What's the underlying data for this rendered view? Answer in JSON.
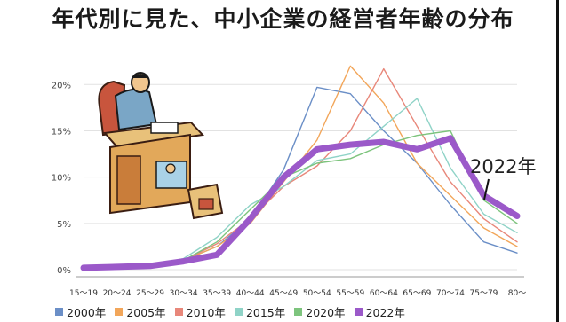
{
  "chart_data": {
    "type": "line",
    "title": "年代別に見た、中小企業の経営者年齢の分布",
    "categories": [
      "15～19",
      "20～24",
      "25～29",
      "30～34",
      "35～39",
      "40～44",
      "45～49",
      "50～54",
      "55～59",
      "60～64",
      "65～69",
      "70～74",
      "75～79",
      "80～"
    ],
    "yticks": [
      "0%",
      "5%",
      "10%",
      "15%",
      "20%"
    ],
    "ylim": [
      0,
      0.23
    ],
    "grid": true,
    "legend_position": "bottom",
    "annotation": "2022年",
    "series": [
      {
        "name": "2000年",
        "color": "#6b8fc7",
        "values": [
          0.002,
          0.003,
          0.005,
          0.01,
          0.025,
          0.055,
          0.108,
          0.197,
          0.19,
          0.15,
          0.115,
          0.07,
          0.03,
          0.018
        ]
      },
      {
        "name": "2005年",
        "color": "#f2a65a",
        "values": [
          0.002,
          0.003,
          0.005,
          0.01,
          0.025,
          0.05,
          0.095,
          0.14,
          0.22,
          0.18,
          0.115,
          0.08,
          0.045,
          0.025
        ]
      },
      {
        "name": "2010年",
        "color": "#e8877a",
        "values": [
          0.002,
          0.003,
          0.005,
          0.01,
          0.028,
          0.055,
          0.09,
          0.112,
          0.15,
          0.217,
          0.155,
          0.095,
          0.055,
          0.03
        ]
      },
      {
        "name": "2015年",
        "color": "#8fd3c7",
        "values": [
          0.002,
          0.003,
          0.005,
          0.012,
          0.035,
          0.07,
          0.09,
          0.118,
          0.125,
          0.155,
          0.185,
          0.11,
          0.06,
          0.04
        ]
      },
      {
        "name": "2020年",
        "color": "#7dc47d",
        "values": [
          0.002,
          0.003,
          0.005,
          0.01,
          0.03,
          0.065,
          0.1,
          0.115,
          0.12,
          0.135,
          0.145,
          0.15,
          0.075,
          0.05
        ]
      },
      {
        "name": "2022年",
        "color": "#9b59c9",
        "values": [
          0.002,
          0.003,
          0.004,
          0.009,
          0.016,
          0.055,
          0.1,
          0.13,
          0.135,
          0.138,
          0.13,
          0.142,
          0.08,
          0.058
        ]
      }
    ]
  }
}
